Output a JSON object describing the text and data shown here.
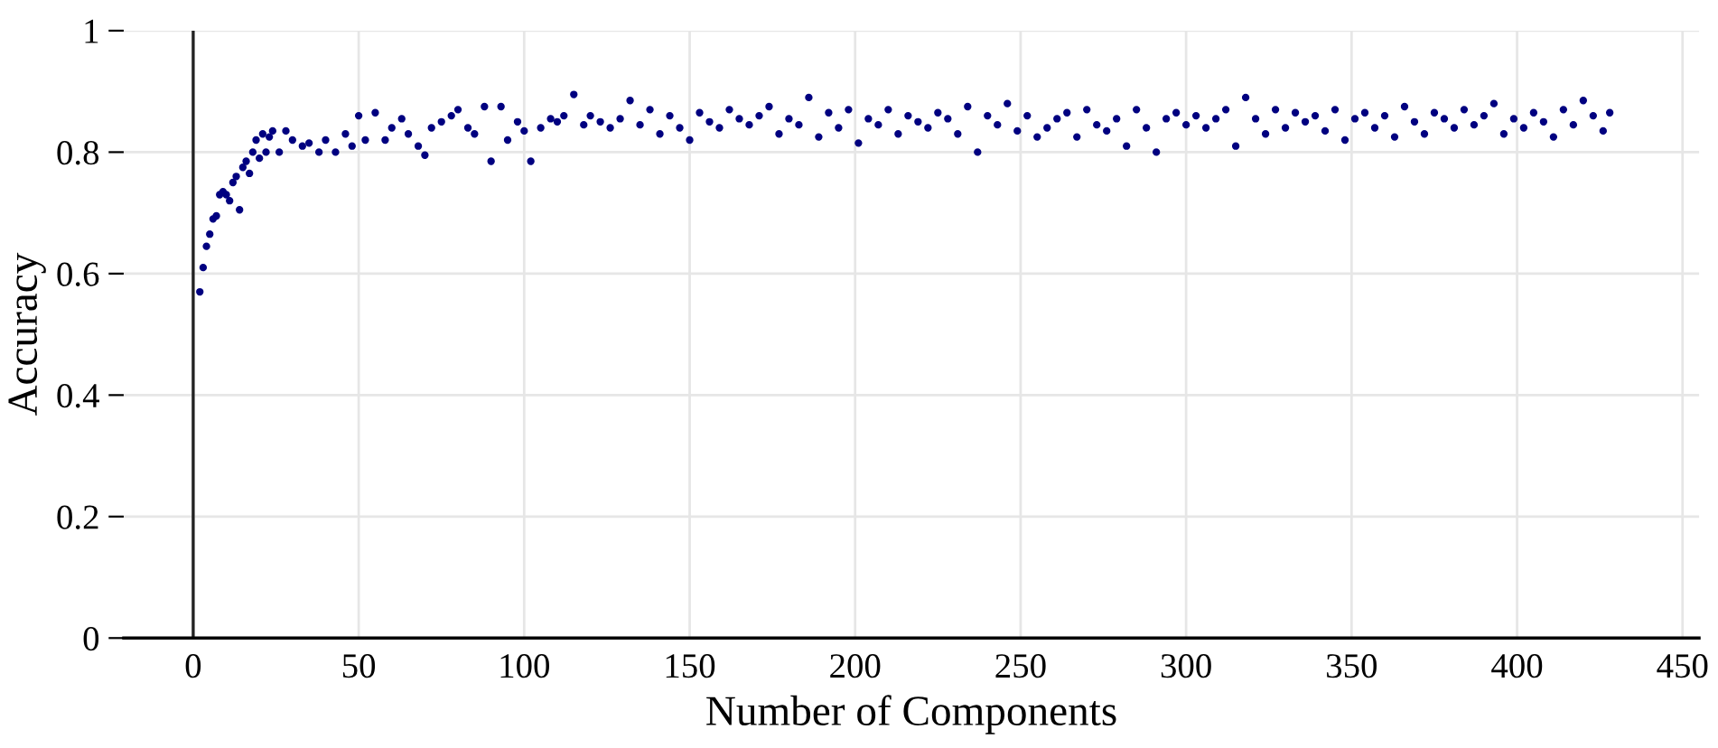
{
  "chart_data": {
    "type": "scatter",
    "xlabel": "Number of Components",
    "ylabel": "Accuracy",
    "xlim": [
      -21,
      455
    ],
    "ylim": [
      0,
      1
    ],
    "xticks": [
      0,
      50,
      100,
      150,
      200,
      250,
      300,
      350,
      400,
      450
    ],
    "yticks": [
      0,
      0.2,
      0.4,
      0.6,
      0.8,
      {
        "value": 1,
        "label": "1"
      }
    ],
    "grid": true,
    "marker": "circle",
    "series": [
      {
        "color": "#000080",
        "x": [
          2,
          3,
          4,
          5,
          6,
          7,
          8,
          9,
          10,
          11,
          12,
          13,
          14,
          15,
          16,
          17,
          18,
          19,
          20,
          21,
          22,
          23,
          24,
          26,
          28,
          30,
          33,
          35,
          38,
          40,
          43,
          46,
          48,
          50,
          52,
          55,
          58,
          60,
          63,
          65,
          68,
          70,
          72,
          75,
          78,
          80,
          83,
          85,
          88,
          90,
          93,
          95,
          98,
          100,
          102,
          105,
          108,
          110,
          112,
          115,
          118,
          120,
          123,
          126,
          129,
          132,
          135,
          138,
          141,
          144,
          147,
          150,
          153,
          156,
          159,
          162,
          165,
          168,
          171,
          174,
          177,
          180,
          183,
          186,
          189,
          192,
          195,
          198,
          201,
          204,
          207,
          210,
          213,
          216,
          219,
          222,
          225,
          228,
          231,
          234,
          237,
          240,
          243,
          246,
          249,
          252,
          255,
          258,
          261,
          264,
          267,
          270,
          273,
          276,
          279,
          282,
          285,
          288,
          291,
          294,
          297,
          300,
          303,
          306,
          309,
          312,
          315,
          318,
          321,
          324,
          327,
          330,
          333,
          336,
          339,
          342,
          345,
          348,
          351,
          354,
          357,
          360,
          363,
          366,
          369,
          372,
          375,
          378,
          381,
          384,
          387,
          390,
          393,
          396,
          399,
          402,
          405,
          408,
          411,
          414,
          417,
          420,
          423,
          426,
          428
        ],
        "values": [
          0.57,
          0.61,
          0.645,
          0.665,
          0.69,
          0.695,
          0.73,
          0.735,
          0.73,
          0.72,
          0.75,
          0.76,
          0.705,
          0.775,
          0.785,
          0.765,
          0.8,
          0.82,
          0.79,
          0.83,
          0.8,
          0.825,
          0.835,
          0.8,
          0.835,
          0.82,
          0.81,
          0.815,
          0.8,
          0.82,
          0.8,
          0.83,
          0.81,
          0.86,
          0.82,
          0.865,
          0.82,
          0.84,
          0.855,
          0.83,
          0.81,
          0.795,
          0.84,
          0.85,
          0.86,
          0.87,
          0.84,
          0.83,
          0.875,
          0.785,
          0.875,
          0.82,
          0.85,
          0.835,
          0.785,
          0.84,
          0.855,
          0.85,
          0.86,
          0.895,
          0.845,
          0.86,
          0.85,
          0.84,
          0.855,
          0.885,
          0.845,
          0.87,
          0.83,
          0.86,
          0.84,
          0.82,
          0.865,
          0.85,
          0.84,
          0.87,
          0.855,
          0.845,
          0.86,
          0.875,
          0.83,
          0.855,
          0.845,
          0.89,
          0.825,
          0.865,
          0.84,
          0.87,
          0.815,
          0.855,
          0.845,
          0.87,
          0.83,
          0.86,
          0.85,
          0.84,
          0.865,
          0.855,
          0.83,
          0.875,
          0.8,
          0.86,
          0.845,
          0.88,
          0.835,
          0.86,
          0.825,
          0.84,
          0.855,
          0.865,
          0.825,
          0.87,
          0.845,
          0.835,
          0.855,
          0.81,
          0.87,
          0.84,
          0.8,
          0.855,
          0.865,
          0.845,
          0.86,
          0.84,
          0.855,
          0.87,
          0.81,
          0.89,
          0.855,
          0.83,
          0.87,
          0.84,
          0.865,
          0.85,
          0.86,
          0.835,
          0.87,
          0.82,
          0.855,
          0.865,
          0.84,
          0.86,
          0.825,
          0.875,
          0.85,
          0.83,
          0.865,
          0.855,
          0.84,
          0.87,
          0.845,
          0.86,
          0.88,
          0.83,
          0.855,
          0.84,
          0.865,
          0.85,
          0.825,
          0.87,
          0.845,
          0.885,
          0.86,
          0.835,
          0.865
        ]
      }
    ]
  }
}
